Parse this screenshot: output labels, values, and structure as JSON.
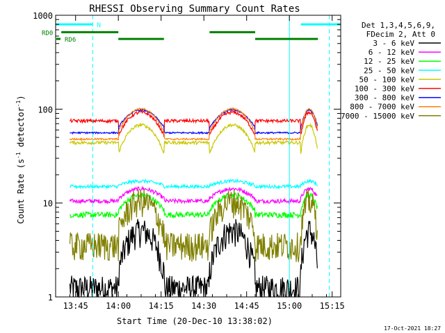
{
  "chart_data": {
    "type": "line",
    "title": "RHESSI Observing Summary Count Rates",
    "xlabel": "Start Time (20-Dec-10 13:38:02)",
    "ylabel_prefix": "Count Rate (s",
    "ylabel_sup": "-1",
    "ylabel_mid": " detector",
    "ylabel_sup2": "-1",
    "ylabel_suffix": ")",
    "yscale": "log",
    "ylim": [
      1,
      1000
    ],
    "xlim_minutes": [
      0,
      100
    ],
    "x_ticks": [
      {
        "minute": 7,
        "label": "13:45"
      },
      {
        "minute": 22,
        "label": "14:00"
      },
      {
        "minute": 37,
        "label": "14:15"
      },
      {
        "minute": 52,
        "label": "14:30"
      },
      {
        "minute": 67,
        "label": "14:45"
      },
      {
        "minute": 82,
        "label": "15:00"
      },
      {
        "minute": 97,
        "label": "15:15"
      }
    ],
    "y_ticks": [
      {
        "value": 1,
        "label": "1"
      },
      {
        "value": 10,
        "label": "10"
      },
      {
        "value": 100,
        "label": "100"
      },
      {
        "value": 1000,
        "label": "1000"
      }
    ],
    "legend_header": [
      "Det 1,3,4,5,6,9,",
      "FDecim 2, Att 0"
    ],
    "series": [
      {
        "name": "3 - 6 keV",
        "color": "#000000",
        "base": 1.25,
        "day_amp": 0.8,
        "amp_type": "up",
        "noise": 0.35
      },
      {
        "name": "6 - 12 keV",
        "color": "#ff00ff",
        "base": 10.5,
        "day_amp": 0.12,
        "amp_type": "up",
        "noise": 0.05
      },
      {
        "name": "12 - 25 keV",
        "color": "#00ff00",
        "base": 7.5,
        "day_amp": 0.2,
        "amp_type": "up",
        "noise": 0.07
      },
      {
        "name": "25 - 50 keV",
        "color": "#00ffff",
        "base": 15,
        "day_amp": 0.05,
        "amp_type": "up",
        "noise": 0.04
      },
      {
        "name": "50 - 100 keV",
        "color": "#c8c800",
        "base": 44,
        "day_amp": 0.55,
        "amp_type": "down",
        "noise": 0.04
      },
      {
        "name": "100 - 300 keV",
        "color": "#ff0000",
        "base": 75,
        "day_amp": 0.38,
        "amp_type": "down",
        "noise": 0.04
      },
      {
        "name": "300 - 800 keV",
        "color": "#0000ff",
        "base": 56,
        "day_amp": 0.24,
        "amp_type": "up",
        "noise": 0.02
      },
      {
        "name": "800 - 7000 keV",
        "color": "#ff8000",
        "base": 48,
        "day_amp": 0.34,
        "amp_type": "up",
        "noise": 0.02
      },
      {
        "name": "7000 - 15000 keV",
        "color": "#808000",
        "base": 3.6,
        "day_amp": 0.55,
        "amp_type": "up",
        "noise": 0.35
      }
    ],
    "daytime_segments_minutes": [
      [
        22,
        38
      ],
      [
        54,
        70
      ],
      [
        86,
        92
      ]
    ],
    "eclipse_start_minute": 5,
    "data_end_minute": 92,
    "saa_lines_minutes": [
      0,
      13,
      82,
      96
    ],
    "saa_solid_minutes": [
      0,
      82
    ],
    "annotations": {
      "rd0_label": "RD0",
      "rd6_label": "RD6",
      "n_label": "N",
      "n_color": "#00ffff",
      "rd_color": "#008000"
    },
    "rd0_segments_minutes": [
      [
        2,
        22
      ],
      [
        54,
        70
      ]
    ],
    "rd6_segments_minutes": [
      [
        22,
        38
      ],
      [
        70,
        92
      ]
    ],
    "n_segments_minutes": [
      [
        0,
        13
      ],
      [
        86,
        100
      ]
    ]
  },
  "footer": "17-Oct-2021 18:27"
}
